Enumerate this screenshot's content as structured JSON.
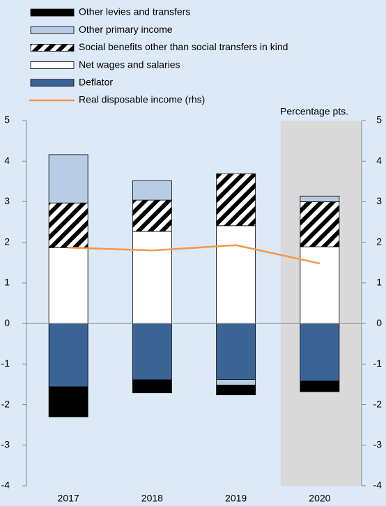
{
  "chart_data": {
    "type": "bar",
    "categories": [
      "2017",
      "2018",
      "2019",
      "2020"
    ],
    "y2_label": "Percentage pts.",
    "stacked": true,
    "highlight_index": 3,
    "highlight_color": "#d9d9d9",
    "series": [
      {
        "name": "Other levies and transfers",
        "color": "#000000",
        "values": [
          -0.74,
          -0.32,
          -0.24,
          -0.26
        ]
      },
      {
        "name": "Other primary income",
        "color": "#b8cce4",
        "values": [
          1.19,
          0.48,
          -0.14,
          0.14
        ]
      },
      {
        "name": "Social benefits other than social transfers in kind",
        "color": "hatch",
        "values": [
          1.1,
          0.77,
          1.28,
          1.11
        ]
      },
      {
        "name": "Net wages and salaries",
        "color": "#ffffff",
        "values": [
          1.87,
          2.27,
          2.41,
          1.89
        ]
      },
      {
        "name": "Deflator",
        "color": "#3a6496",
        "values": [
          -1.56,
          -1.39,
          -1.38,
          -1.42
        ]
      },
      {
        "name": "Real disposable income (rhs)",
        "type": "line",
        "axis": "y2",
        "color": "#f79646",
        "values": [
          1.87,
          1.8,
          1.93,
          1.48
        ]
      }
    ],
    "ylim": [
      -4,
      5
    ],
    "yticks": [
      -4,
      -3,
      -2,
      -1,
      0,
      1,
      2,
      3,
      4,
      5
    ],
    "y2lim": [
      -4,
      5
    ],
    "y2ticks": [
      -4,
      -3,
      -2,
      -1,
      0,
      1,
      2,
      3,
      4,
      5
    ]
  }
}
